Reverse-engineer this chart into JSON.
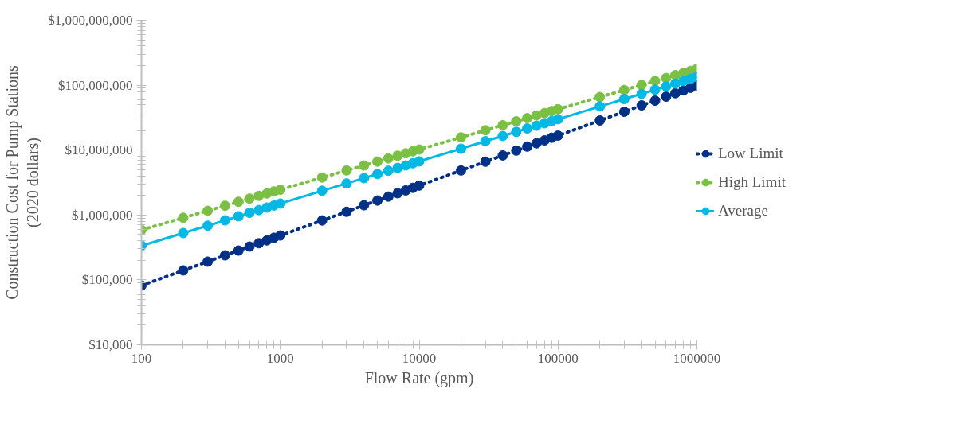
{
  "chart_data": {
    "type": "line",
    "xlabel": "Flow Rate (gpm)",
    "ylabel": "Construction Cost for Pump Stations\n(2020 dollars)",
    "log": "xy",
    "grid": false,
    "legend": "right",
    "marker": "circle",
    "x": [
      100,
      200,
      300,
      400,
      500,
      600,
      700,
      800,
      900,
      1000,
      2000,
      3000,
      4000,
      5000,
      6000,
      7000,
      8000,
      9000,
      10000,
      20000,
      30000,
      40000,
      50000,
      60000,
      70000,
      80000,
      90000,
      100000,
      200000,
      300000,
      400000,
      500000,
      600000,
      700000,
      800000,
      900000,
      1000000
    ],
    "xlim": [
      100,
      1000000
    ],
    "xticks": [
      100,
      1000,
      10000,
      100000,
      1000000
    ],
    "ylim": [
      10000,
      1000000000
    ],
    "yticks": [
      {
        "value": 10000,
        "label": "$10,000"
      },
      {
        "value": 100000,
        "label": "$100,000"
      },
      {
        "value": 1000000,
        "label": "$1,000,000"
      },
      {
        "value": 10000000,
        "label": "$10,000,000"
      },
      {
        "value": 100000000,
        "label": "$100,000,000"
      },
      {
        "value": 1000000000,
        "label": "$1,000,000,000"
      }
    ],
    "series": [
      {
        "name": "Low Limit",
        "color": "#003087",
        "line_style": "dotted",
        "values": [
          82000,
          140000,
          191000,
          239000,
          283000,
          326000,
          367000,
          406000,
          446000,
          483000,
          824000,
          1120000,
          1410000,
          1670000,
          1920000,
          2160000,
          2390000,
          2620000,
          2840000,
          4850000,
          6620000,
          8280000,
          9820000,
          11300000,
          12700000,
          14100000,
          15500000,
          16700000,
          28600000,
          39000000,
          48800000,
          57800000,
          66500000,
          75000000,
          83000000,
          91000000,
          98600000
        ]
      },
      {
        "name": "High Limit",
        "color": "#7ac143",
        "line_style": "dotted",
        "values": [
          589000,
          906000,
          1160000,
          1390000,
          1600000,
          1790000,
          1970000,
          2140000,
          2300000,
          2450000,
          3780000,
          4850000,
          5790000,
          6650000,
          7450000,
          8200000,
          8910000,
          9570000,
          10200000,
          15700000,
          20200000,
          24200000,
          27700000,
          31000000,
          34200000,
          37200000,
          39900000,
          42700000,
          65600000,
          84300000,
          101000000,
          116000000,
          129000000,
          143000000,
          155000000,
          166000000,
          178000000
        ]
      },
      {
        "name": "Average",
        "color": "#00b9e4",
        "line_style": "solid",
        "values": [
          336000,
          527000,
          685000,
          826000,
          955000,
          1080000,
          1190000,
          1300000,
          1400000,
          1500000,
          2360000,
          3060000,
          3690000,
          4270000,
          4810000,
          5310000,
          5790000,
          6250000,
          6700000,
          10500000,
          13700000,
          16500000,
          19100000,
          21500000,
          23700000,
          25900000,
          27900000,
          29900000,
          47000000,
          61100000,
          73600000,
          85100000,
          95900000,
          106000000,
          116000000,
          125000000,
          134000000
        ]
      }
    ]
  }
}
